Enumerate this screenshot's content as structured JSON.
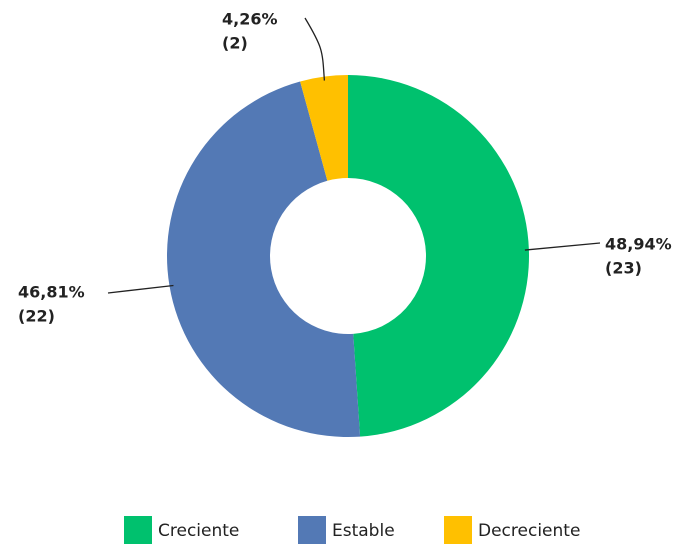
{
  "chart_data": {
    "type": "pie",
    "categories": [
      "Creciente",
      "Estable",
      "Decreciente"
    ],
    "values": [
      48.94,
      46.81,
      4.26
    ],
    "value_labels": [
      "48,94%",
      "46,81%",
      "4,26%"
    ],
    "counts": [
      23,
      22,
      2
    ],
    "count_labels": [
      "(23)",
      "(22)",
      "(2)"
    ],
    "colors": [
      "#00c16e",
      "#5379b5",
      "#ffc000"
    ],
    "donut": true,
    "legend": "bottom"
  }
}
